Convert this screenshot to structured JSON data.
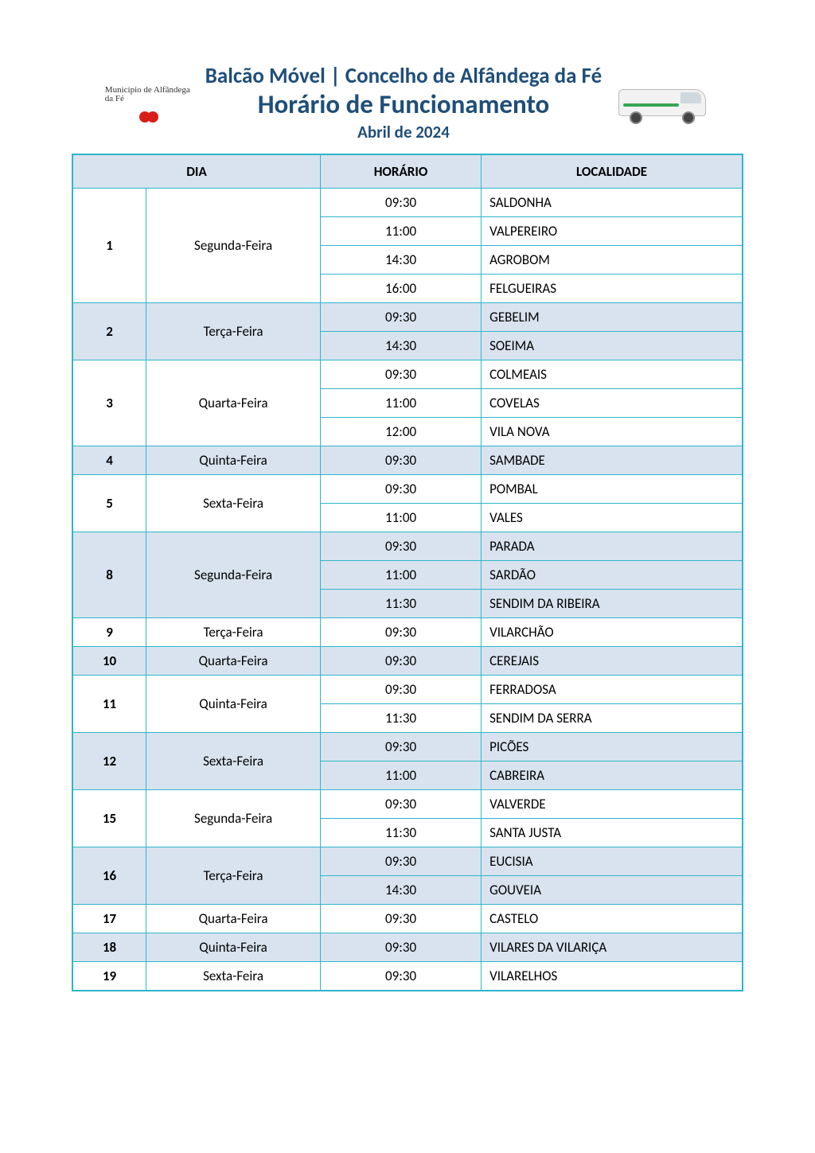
{
  "header": {
    "logo_left_text": "Município de Alfândega da Fé",
    "title_line1": "Balcão Móvel | Concelho de Alfândega da Fé",
    "title_line2": "Horário de Funcionamento",
    "title_line3": "Abril de 2024"
  },
  "colors": {
    "title_color": "#1f4e79",
    "border_color": "#2eb5cc",
    "header_row_bg": "#d8e3ef",
    "shaded_row_bg": "#d8e3ef",
    "unshaded_row_bg": "#ffffff",
    "page_bg": "#ffffff",
    "cherry_color": "#d91e18",
    "van_stripe": "#3aa655"
  },
  "table": {
    "columns": [
      {
        "key": "dia",
        "label": "DIA",
        "span": 2
      },
      {
        "key": "horario",
        "label": "HORÁRIO",
        "span": 1
      },
      {
        "key": "localidade",
        "label": "LOCALIDADE",
        "span": 1
      }
    ],
    "col_widths_pct": [
      11,
      26,
      24,
      39
    ],
    "groups": [
      {
        "day_num": "1",
        "day_name": "Segunda-Feira",
        "shaded": false,
        "rows": [
          {
            "time": "09:30",
            "locality": "SALDONHA"
          },
          {
            "time": "11:00",
            "locality": "VALPEREIRO"
          },
          {
            "time": "14:30",
            "locality": "AGROBOM"
          },
          {
            "time": "16:00",
            "locality": "FELGUEIRAS"
          }
        ]
      },
      {
        "day_num": "2",
        "day_name": "Terça-Feira",
        "shaded": true,
        "rows": [
          {
            "time": "09:30",
            "locality": "GEBELIM"
          },
          {
            "time": "14:30",
            "locality": "SOEIMA"
          }
        ]
      },
      {
        "day_num": "3",
        "day_name": "Quarta-Feira",
        "shaded": false,
        "rows": [
          {
            "time": "09:30",
            "locality": "COLMEAIS"
          },
          {
            "time": "11:00",
            "locality": "COVELAS"
          },
          {
            "time": "12:00",
            "locality": "VILA NOVA"
          }
        ]
      },
      {
        "day_num": "4",
        "day_name": "Quinta-Feira",
        "shaded": true,
        "rows": [
          {
            "time": "09:30",
            "locality": "SAMBADE"
          }
        ]
      },
      {
        "day_num": "5",
        "day_name": "Sexta-Feira",
        "shaded": false,
        "rows": [
          {
            "time": "09:30",
            "locality": "POMBAL"
          },
          {
            "time": "11:00",
            "locality": "VALES"
          }
        ]
      },
      {
        "day_num": "8",
        "day_name": "Segunda-Feira",
        "shaded": true,
        "rows": [
          {
            "time": "09:30",
            "locality": "PARADA"
          },
          {
            "time": "11:00",
            "locality": "SARDÃO"
          },
          {
            "time": "11:30",
            "locality": "SENDIM DA RIBEIRA"
          }
        ]
      },
      {
        "day_num": "9",
        "day_name": "Terça-Feira",
        "shaded": false,
        "rows": [
          {
            "time": "09:30",
            "locality": "VILARCHÃO"
          }
        ]
      },
      {
        "day_num": "10",
        "day_name": "Quarta-Feira",
        "shaded": true,
        "rows": [
          {
            "time": "09:30",
            "locality": "CEREJAIS"
          }
        ]
      },
      {
        "day_num": "11",
        "day_name": "Quinta-Feira",
        "shaded": false,
        "rows": [
          {
            "time": "09:30",
            "locality": "FERRADOSA"
          },
          {
            "time": "11:30",
            "locality": "SENDIM DA SERRA"
          }
        ]
      },
      {
        "day_num": "12",
        "day_name": "Sexta-Feira",
        "shaded": true,
        "rows": [
          {
            "time": "09:30",
            "locality": "PICÕES"
          },
          {
            "time": "11:00",
            "locality": "CABREIRA"
          }
        ]
      },
      {
        "day_num": "15",
        "day_name": "Segunda-Feira",
        "shaded": false,
        "rows": [
          {
            "time": "09:30",
            "locality": "VALVERDE"
          },
          {
            "time": "11:30",
            "locality": "SANTA JUSTA"
          }
        ]
      },
      {
        "day_num": "16",
        "day_name": "Terça-Feira",
        "shaded": true,
        "rows": [
          {
            "time": "09:30",
            "locality": "EUCISIA"
          },
          {
            "time": "14:30",
            "locality": "GOUVEIA"
          }
        ]
      },
      {
        "day_num": "17",
        "day_name": "Quarta-Feira",
        "shaded": false,
        "rows": [
          {
            "time": "09:30",
            "locality": "CASTELO"
          }
        ]
      },
      {
        "day_num": "18",
        "day_name": "Quinta-Feira",
        "shaded": true,
        "rows": [
          {
            "time": "09:30",
            "locality": "VILARES DA VILARIÇA"
          }
        ]
      },
      {
        "day_num": "19",
        "day_name": "Sexta-Feira",
        "shaded": false,
        "rows": [
          {
            "time": "09:30",
            "locality": "VILARELHOS"
          }
        ]
      }
    ]
  }
}
